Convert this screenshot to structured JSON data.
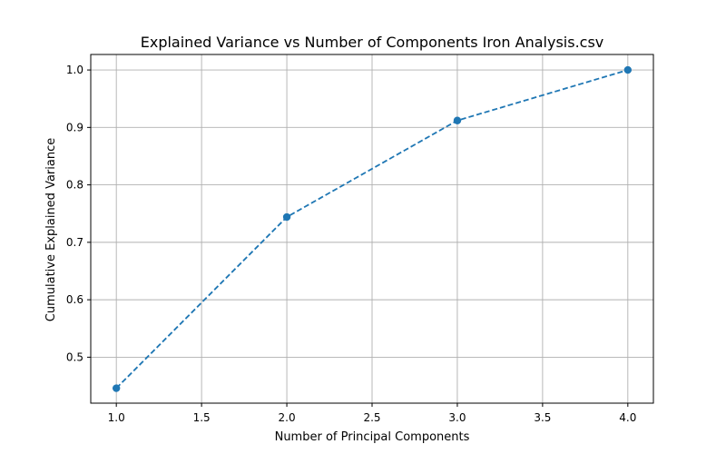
{
  "chart_data": {
    "type": "line",
    "title": "Explained Variance vs Number of Components Iron Analysis.csv",
    "xlabel": "Number of Principal Components",
    "ylabel": "Cumulative Explained Variance",
    "xlim": [
      0.85,
      4.15
    ],
    "ylim": [
      0.42,
      1.027
    ],
    "xticks": [
      1.0,
      1.5,
      2.0,
      2.5,
      3.0,
      3.5,
      4.0
    ],
    "xtick_labels": [
      "1.0",
      "1.5",
      "2.0",
      "2.5",
      "3.0",
      "3.5",
      "4.0"
    ],
    "yticks": [
      0.5,
      0.6,
      0.7,
      0.8,
      0.9,
      1.0
    ],
    "ytick_labels": [
      "0.5",
      "0.6",
      "0.7",
      "0.8",
      "0.9",
      "1.0"
    ],
    "grid": true,
    "series": [
      {
        "x": [
          1,
          2,
          3,
          4
        ],
        "y": [
          0.446,
          0.744,
          0.912,
          1.0
        ],
        "color": "#1f77b4",
        "line_style": "dashed",
        "marker": "circle"
      }
    ]
  }
}
